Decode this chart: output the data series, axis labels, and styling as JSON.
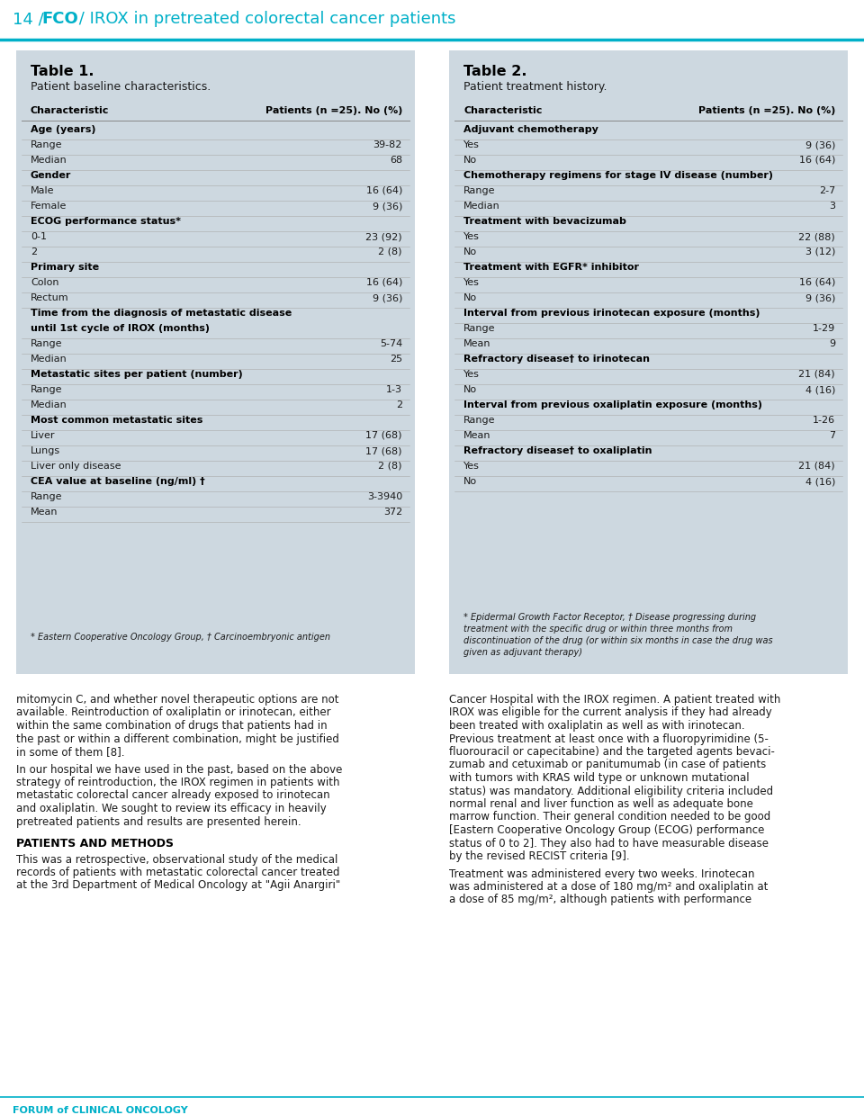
{
  "page_title_prefix": "14 / ",
  "page_title_bold": "FCO",
  "page_title_suffix": " / IROX in pretreated colorectal cancer patients",
  "title_color": "#00b0c8",
  "header_line_color": "#00b0c8",
  "table_bg_color": "#cdd8e0",
  "table1_title": "Table 1.",
  "table1_subtitle": "Patient baseline characteristics.",
  "table2_title": "Table 2.",
  "table2_subtitle": "Patient treatment history.",
  "col_header1": "Characteristic",
  "col_header2": "Patients (n =25). No (%)",
  "table1_rows": [
    {
      "label": "Age (years)",
      "value": "",
      "bold": true
    },
    {
      "label": "Range",
      "value": "39-82",
      "bold": false
    },
    {
      "label": "Median",
      "value": "68",
      "bold": false
    },
    {
      "label": "Gender",
      "value": "",
      "bold": true
    },
    {
      "label": "Male",
      "value": "16 (64)",
      "bold": false
    },
    {
      "label": "Female",
      "value": "9 (36)",
      "bold": false
    },
    {
      "label": "ECOG performance status*",
      "value": "",
      "bold": true
    },
    {
      "label": "0-1",
      "value": "23 (92)",
      "bold": false
    },
    {
      "label": "2",
      "value": "2 (8)",
      "bold": false
    },
    {
      "label": "Primary site",
      "value": "",
      "bold": true
    },
    {
      "label": "Colon",
      "value": "16 (64)",
      "bold": false
    },
    {
      "label": "Rectum",
      "value": "9 (36)",
      "bold": false
    },
    {
      "label": "Time from the diagnosis of metastatic disease",
      "value": "",
      "bold": true,
      "cont": true
    },
    {
      "label": "until 1st cycle of IROX (months)",
      "value": "",
      "bold": true,
      "cont": false
    },
    {
      "label": "Range",
      "value": "5-74",
      "bold": false
    },
    {
      "label": "Median",
      "value": "25",
      "bold": false
    },
    {
      "label": "Metastatic sites per patient (number)",
      "value": "",
      "bold": true
    },
    {
      "label": "Range",
      "value": "1-3",
      "bold": false
    },
    {
      "label": "Median",
      "value": "2",
      "bold": false
    },
    {
      "label": "Most common metastatic sites",
      "value": "",
      "bold": true
    },
    {
      "label": "Liver",
      "value": "17 (68)",
      "bold": false
    },
    {
      "label": "Lungs",
      "value": "17 (68)",
      "bold": false
    },
    {
      "label": "Liver only disease",
      "value": "2 (8)",
      "bold": false
    },
    {
      "label": "CEA value at baseline (ng/ml) †",
      "value": "",
      "bold": true
    },
    {
      "label": "Range",
      "value": "3-3940",
      "bold": false
    },
    {
      "label": "Mean",
      "value": "372",
      "bold": false
    }
  ],
  "table1_footnote": "* Eastern Cooperative Oncology Group, † Carcinoembryonic antigen",
  "table2_rows": [
    {
      "label": "Adjuvant chemotherapy",
      "value": "",
      "bold": true
    },
    {
      "label": "Yes",
      "value": "9 (36)",
      "bold": false
    },
    {
      "label": "No",
      "value": "16 (64)",
      "bold": false
    },
    {
      "label": "Chemotherapy regimens for stage IV disease (number)",
      "value": "",
      "bold": true
    },
    {
      "label": "Range",
      "value": "2-7",
      "bold": false
    },
    {
      "label": "Median",
      "value": "3",
      "bold": false
    },
    {
      "label": "Treatment with bevacizumab",
      "value": "",
      "bold": true
    },
    {
      "label": "Yes",
      "value": "22 (88)",
      "bold": false
    },
    {
      "label": "No",
      "value": "3 (12)",
      "bold": false
    },
    {
      "label": "Treatment with EGFR* inhibitor",
      "value": "",
      "bold": true
    },
    {
      "label": "Yes",
      "value": "16 (64)",
      "bold": false
    },
    {
      "label": "No",
      "value": "9 (36)",
      "bold": false
    },
    {
      "label": "Interval from previous irinotecan exposure (months)",
      "value": "",
      "bold": true
    },
    {
      "label": "Range",
      "value": "1-29",
      "bold": false
    },
    {
      "label": "Mean",
      "value": "9",
      "bold": false
    },
    {
      "label": "Refractory disease† to irinotecan",
      "value": "",
      "bold": true
    },
    {
      "label": "Yes",
      "value": "21 (84)",
      "bold": false
    },
    {
      "label": "No",
      "value": "4 (16)",
      "bold": false
    },
    {
      "label": "Interval from previous oxaliplatin exposure (months)",
      "value": "",
      "bold": true
    },
    {
      "label": "Range",
      "value": "1-26",
      "bold": false
    },
    {
      "label": "Mean",
      "value": "7",
      "bold": false
    },
    {
      "label": "Refractory disease† to oxaliplatin",
      "value": "",
      "bold": true
    },
    {
      "label": "Yes",
      "value": "21 (84)",
      "bold": false
    },
    {
      "label": "No",
      "value": "4 (16)",
      "bold": false
    }
  ],
  "table2_footnote_lines": [
    "* Epidermal Growth Factor Receptor, † Disease progressing during",
    "treatment with the specific drug or within three months from",
    "discontinuation of the drug (or within six months in case the drug was",
    "given as adjuvant therapy)"
  ],
  "body_left_para1": [
    "mitomycin C, and whether novel therapeutic options are not",
    "available. Reintroduction of oxaliplatin or irinotecan, either",
    "within the same combination of drugs that patients had in",
    "the past or within a different combination, might be justified",
    "in some of them [8]."
  ],
  "body_left_para2": [
    "In our hospital we have used in the past, based on the above",
    "strategy of reintroduction, the IROX regimen in patients with",
    "metastatic colorectal cancer already exposed to irinotecan",
    "and oxaliplatin. We sought to review its efficacy in heavily",
    "pretreated patients and results are presented herein."
  ],
  "body_subheading": "PATIENTS AND METHODS",
  "body_left_para3": [
    "This was a retrospective, observational study of the medical",
    "records of patients with metastatic colorectal cancer treated",
    "at the 3rd Department of Medical Oncology at \"Agii Anargiri\""
  ],
  "body_right_para1": [
    "Cancer Hospital with the IROX regimen. A patient treated with",
    "IROX was eligible for the current analysis if they had already",
    "been treated with oxaliplatin as well as with irinotecan.",
    "Previous treatment at least once with a fluoropyrimidine (5-",
    "fluorouracil or capecitabine) and the targeted agents bevaci-",
    "zumab and cetuximab or panitumumab (in case of patients",
    "with tumors with KRAS wild type or unknown mutational",
    "status) was mandatory. Additional eligibility criteria included",
    "normal renal and liver function as well as adequate bone",
    "marrow function. Their general condition needed to be good",
    "[Eastern Cooperative Oncology Group (ECOG) performance",
    "status of 0 to 2]. They also had to have measurable disease",
    "by the revised RECIST criteria [9]."
  ],
  "body_right_para2": [
    "Treatment was administered every two weeks. Irinotecan",
    "was administered at a dose of 180 mg/m² and oxaliplatin at",
    "a dose of 85 mg/m², although patients with performance"
  ],
  "footer_text": "FORUM of CLINICAL ONCOLOGY",
  "text_color": "#1a1a1a",
  "bold_text_color": "#000000",
  "footer_color": "#00b0c8"
}
